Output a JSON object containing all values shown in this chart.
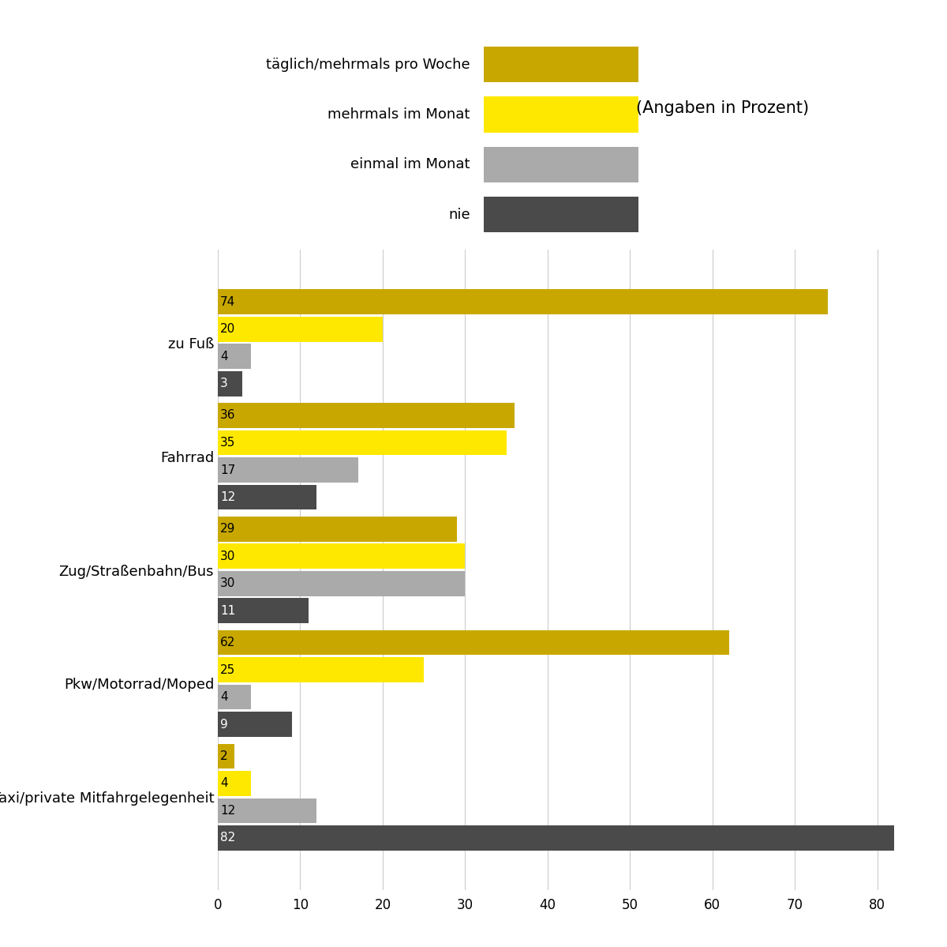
{
  "legend_labels": [
    "täglich/mehrmals pro Woche",
    "mehrmals im Monat",
    "einmal im Monat",
    "nie"
  ],
  "colors": [
    "#C8A800",
    "#FFE800",
    "#AAAAAA",
    "#4A4A4A"
  ],
  "annotation_text": "(Angaben in Prozent)",
  "categories": [
    "zu Fuß",
    "Fahrrad",
    "Zug/Straßenbahn/Bus",
    "Pkw/Motorrad/Moped",
    "Taxi/private Mitfahrgelegenheit"
  ],
  "data": {
    "zu Fuß": [
      74,
      20,
      4,
      3
    ],
    "Fahrrad": [
      36,
      35,
      17,
      12
    ],
    "Zug/Straßenbahn/Bus": [
      29,
      30,
      30,
      11
    ],
    "Pkw/Motorrad/Moped": [
      62,
      25,
      4,
      9
    ],
    "Taxi/private Mitfahrgelegenheit": [
      2,
      4,
      12,
      82
    ]
  },
  "xlim": [
    0,
    85
  ],
  "xticks": [
    0,
    10,
    20,
    30,
    40,
    50,
    60,
    70,
    80
  ],
  "bar_height": 0.22,
  "bar_gap": 0.02,
  "figsize": [
    12.0,
    11.99
  ],
  "dpi": 100,
  "background_color": "#FFFFFF",
  "label_fontsize": 13,
  "tick_fontsize": 12,
  "annotation_fontsize": 15,
  "legend_fontsize": 13,
  "value_fontsize": 11
}
